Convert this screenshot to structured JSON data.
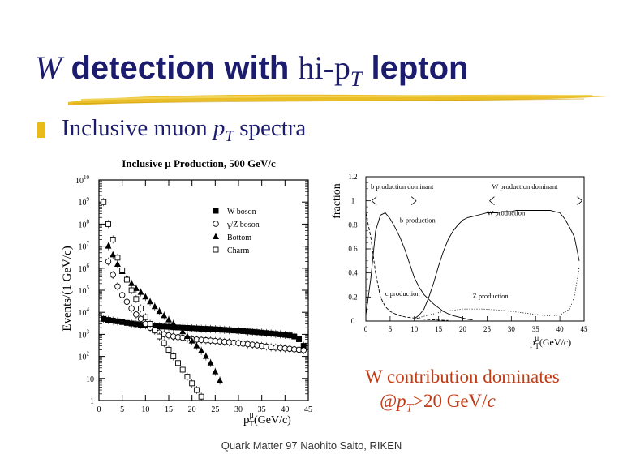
{
  "slide": {
    "title_w": "W",
    "title_mid": " detection with ",
    "title_hi": "hi-p",
    "title_sub_T": "T",
    "title_end": " lepton",
    "bullet_text": "Inclusive muon ",
    "bullet_p": "p",
    "bullet_sub": "T",
    "bullet_end": " spectra",
    "note_line1": "W contribution dominates",
    "note_line2_a": "@p",
    "note_line2_sub": "T",
    "note_line2_b": ">20 GeV/",
    "note_line2_c": "c",
    "footer": "Quark Matter 97  Naohito Saito, RIKEN",
    "accent_color": "#e8bb1a",
    "title_color": "#1c1c6e",
    "note_color": "#c23b14"
  },
  "chart_data": [
    {
      "type": "scatter",
      "title": "Inclusive μ Production, 500 GeV/c",
      "ylabel": "Events/(1 GeV/c)",
      "xlabel": "p_T^μ (GeV/c)",
      "xlabel_main": "p",
      "xlabel_sub": "T",
      "xlabel_sup": "μ",
      "xlabel_unit": "(GeV/c)",
      "y_scale": "log",
      "xlim": [
        0,
        45
      ],
      "ylim": [
        1,
        10000000000
      ],
      "x_ticks": [
        0,
        5,
        10,
        15,
        20,
        25,
        30,
        35,
        40,
        45
      ],
      "y_tick_labels": [
        "1",
        "10",
        "10 2",
        "10 3",
        "10 4",
        "10 5",
        "10 6",
        "10 7",
        "10 8",
        "10 9",
        "10 10"
      ],
      "legend_position": "top-right",
      "series": [
        {
          "name": "W boson",
          "marker": "filled-square",
          "x": [
            1,
            2,
            3,
            4,
            5,
            6,
            7,
            8,
            9,
            10,
            11,
            12,
            13,
            14,
            15,
            16,
            17,
            18,
            19,
            20,
            21,
            22,
            23,
            24,
            25,
            26,
            27,
            28,
            29,
            30,
            31,
            32,
            33,
            34,
            35,
            36,
            37,
            38,
            39,
            40,
            41,
            42,
            43,
            44
          ],
          "y": [
            5000,
            4500,
            4200,
            3900,
            3600,
            3300,
            3100,
            2900,
            2700,
            2600,
            2500,
            2400,
            2300,
            2250,
            2200,
            2100,
            2050,
            2000,
            1950,
            1900,
            1850,
            1800,
            1780,
            1750,
            1700,
            1650,
            1600,
            1550,
            1500,
            1450,
            1400,
            1350,
            1300,
            1250,
            1200,
            1150,
            1100,
            1050,
            1000,
            950,
            900,
            800,
            600,
            300
          ]
        },
        {
          "name": "γ/Z boson",
          "marker": "open-circle",
          "x": [
            2,
            3,
            4,
            5,
            6,
            7,
            8,
            9,
            10,
            11,
            12,
            13,
            14,
            15,
            16,
            17,
            18,
            19,
            20,
            21,
            22,
            23,
            24,
            25,
            26,
            27,
            28,
            29,
            30,
            31,
            32,
            33,
            34,
            35,
            36,
            37,
            38,
            39,
            40,
            41,
            42,
            43,
            44
          ],
          "y": [
            2000000,
            500000,
            150000,
            60000,
            30000,
            15000,
            8000,
            5000,
            3000,
            2000,
            1500,
            1200,
            1000,
            900,
            800,
            750,
            700,
            650,
            600,
            580,
            560,
            540,
            520,
            500,
            480,
            460,
            440,
            420,
            400,
            380,
            360,
            340,
            320,
            300,
            280,
            260,
            250,
            240,
            230,
            220,
            210,
            200,
            190
          ]
        },
        {
          "name": "Bottom",
          "marker": "filled-triangle",
          "x": [
            2,
            3,
            4,
            5,
            6,
            7,
            8,
            9,
            10,
            11,
            12,
            13,
            14,
            15,
            16,
            17,
            18,
            19,
            20,
            21,
            22,
            23,
            24,
            25,
            26
          ],
          "y": [
            10000000,
            4000000,
            1500000,
            700000,
            350000,
            200000,
            120000,
            80000,
            50000,
            30000,
            18000,
            11000,
            7000,
            4500,
            3000,
            2000,
            1300,
            800,
            500,
            300,
            180,
            100,
            50,
            20,
            8
          ]
        },
        {
          "name": "Charm",
          "marker": "open-square",
          "x": [
            1,
            2,
            3,
            4,
            5,
            6,
            7,
            8,
            9,
            10,
            11,
            12,
            13,
            14,
            15,
            16,
            17,
            18,
            19,
            20,
            21,
            22
          ],
          "y": [
            1000000000,
            100000000,
            20000000,
            3000000,
            800000,
            300000,
            100000,
            40000,
            15000,
            6000,
            3000,
            1500,
            800,
            400,
            200,
            100,
            50,
            25,
            12,
            6,
            3,
            1.5
          ]
        }
      ]
    },
    {
      "type": "line",
      "ylabel": "fraction",
      "xlabel": "p_T^μ (GeV/c)",
      "xlabel_main": "p",
      "xlabel_sub": "T",
      "xlabel_sup": "μ",
      "xlabel_unit": "(GeV/c)",
      "xlim": [
        0,
        45
      ],
      "ylim": [
        0,
        1.2
      ],
      "x_ticks": [
        0,
        5,
        10,
        15,
        20,
        25,
        30,
        35,
        40,
        45
      ],
      "y_ticks": [
        0,
        0.2,
        0.4,
        0.6,
        0.8,
        1,
        1.2
      ],
      "annotations": [
        {
          "text": "b production dominant",
          "x": 1,
          "y": 1.1
        },
        {
          "text": "W production dominant",
          "x": 26,
          "y": 1.1
        },
        {
          "text": "b-production",
          "x": 7,
          "y": 0.82
        },
        {
          "text": "W production",
          "x": 25,
          "y": 0.88
        },
        {
          "text": "c production",
          "x": 4,
          "y": 0.21
        },
        {
          "text": "Z production",
          "x": 22,
          "y": 0.19
        }
      ],
      "series": [
        {
          "style": "solid",
          "x": [
            0,
            1,
            2,
            3,
            4,
            5,
            6,
            7,
            8,
            9,
            10,
            11,
            12,
            13,
            14,
            15,
            16,
            17,
            18,
            19,
            20,
            21,
            22
          ],
          "y": [
            0.05,
            0.35,
            0.75,
            0.88,
            0.9,
            0.85,
            0.78,
            0.7,
            0.6,
            0.48,
            0.36,
            0.28,
            0.22,
            0.18,
            0.14,
            0.11,
            0.08,
            0.06,
            0.045,
            0.035,
            0.025,
            0.015,
            0.01
          ]
        },
        {
          "style": "solid",
          "x": [
            10,
            11,
            12,
            13,
            14,
            15,
            16,
            17,
            18,
            19,
            20,
            21,
            22,
            23,
            24,
            25,
            26,
            27,
            28,
            29,
            30,
            31,
            32,
            33,
            34,
            35,
            36,
            37,
            38,
            39,
            40,
            41,
            42,
            43,
            44
          ],
          "y": [
            0.02,
            0.05,
            0.1,
            0.2,
            0.32,
            0.46,
            0.58,
            0.68,
            0.75,
            0.8,
            0.84,
            0.86,
            0.87,
            0.88,
            0.89,
            0.9,
            0.9,
            0.9,
            0.91,
            0.91,
            0.91,
            0.92,
            0.92,
            0.92,
            0.92,
            0.92,
            0.92,
            0.92,
            0.92,
            0.91,
            0.9,
            0.85,
            0.78,
            0.7,
            0.5
          ]
        },
        {
          "style": "dashed",
          "x": [
            0,
            1,
            2,
            3,
            4,
            5,
            6,
            7,
            8,
            9,
            10,
            11,
            12,
            13,
            14,
            15,
            16,
            17
          ],
          "y": [
            0.9,
            0.7,
            0.4,
            0.2,
            0.12,
            0.08,
            0.06,
            0.045,
            0.035,
            0.03,
            0.025,
            0.02,
            0.015,
            0.012,
            0.01,
            0.008,
            0.006,
            0.005
          ]
        },
        {
          "style": "dotted",
          "x": [
            10,
            12,
            14,
            16,
            18,
            20,
            22,
            24,
            26,
            28,
            30,
            32,
            34,
            36,
            38,
            40,
            42,
            43,
            44
          ],
          "y": [
            0.02,
            0.04,
            0.06,
            0.08,
            0.09,
            0.1,
            0.1,
            0.1,
            0.095,
            0.09,
            0.08,
            0.07,
            0.06,
            0.05,
            0.045,
            0.05,
            0.1,
            0.2,
            0.45
          ]
        }
      ]
    }
  ]
}
